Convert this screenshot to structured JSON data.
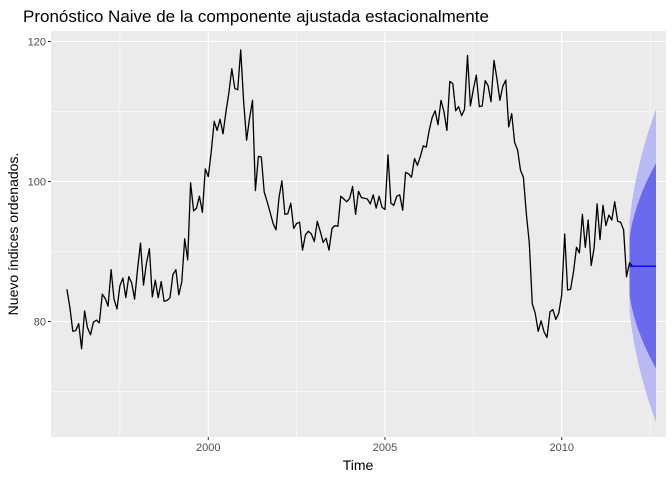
{
  "chart_data": {
    "type": "line",
    "title": "Pronóstico Naive de la componente ajustada estacionalmente",
    "xlabel": "Time",
    "ylabel": "Nuevo índices ordenados.",
    "xlim": [
      1995.55,
      2012.95
    ],
    "ylim": [
      63.5,
      121.5
    ],
    "x_ticks": [
      2000,
      2005,
      2010
    ],
    "x_tick_labels": [
      "2000",
      "2005",
      "2010"
    ],
    "y_ticks": [
      80,
      100,
      120
    ],
    "y_tick_labels": [
      "80",
      "100",
      "120"
    ],
    "grid": true,
    "legend": "none",
    "colors": {
      "panel": "#ebebeb",
      "grid_major": "#ffffff",
      "series": "#000000",
      "forecast": "#0000ff",
      "band80": "#6a6aee",
      "band95": "#b9b9f5"
    },
    "series": [
      {
        "start": 1996.0,
        "frequency": 12,
        "values": [
          84.6,
          82.0,
          78.6,
          78.7,
          79.7,
          76.1,
          81.5,
          79.1,
          78.1,
          79.9,
          80.2,
          79.8,
          83.9,
          83.3,
          82.2,
          87.4,
          83.2,
          81.8,
          85.1,
          86.2,
          83.4,
          86.4,
          85.5,
          83.2,
          87.5,
          91.2,
          85.2,
          88.3,
          90.4,
          83.5,
          85.9,
          83.4,
          85.7,
          82.9,
          83.0,
          83.4,
          86.7,
          87.4,
          83.8,
          85.7,
          91.8,
          88.8,
          99.8,
          95.8,
          96.2,
          97.9,
          95.6,
          101.8,
          100.7,
          104.2,
          108.6,
          107.3,
          108.9,
          106.8,
          110.0,
          112.7,
          116.1,
          113.3,
          113.1,
          118.8,
          111.5,
          105.9,
          109.0,
          111.6,
          98.7,
          103.6,
          103.5,
          98.5,
          97.1,
          95.6,
          94.0,
          93.1,
          97.7,
          100.1,
          95.3,
          95.4,
          96.9,
          93.3,
          94.0,
          94.2,
          90.2,
          92.4,
          92.9,
          92.5,
          91.4,
          94.3,
          92.9,
          91.3,
          91.9,
          90.2,
          93.3,
          93.7,
          93.6,
          97.9,
          97.5,
          97.1,
          97.6,
          99.3,
          95.3,
          98.6,
          97.7,
          97.6,
          97.5,
          96.8,
          98.1,
          96.2,
          97.9,
          96.3,
          96.0,
          103.8,
          96.9,
          96.6,
          97.9,
          98.1,
          95.9,
          101.3,
          101.1,
          100.6,
          103.3,
          102.3,
          103.6,
          105.1,
          104.9,
          107.3,
          109.1,
          110.1,
          108.1,
          111.6,
          110.0,
          107.3,
          114.3,
          114.0,
          110.1,
          110.7,
          109.4,
          110.3,
          118.0,
          110.8,
          113.2,
          115.2,
          110.7,
          110.8,
          114.4,
          113.7,
          111.4,
          117.3,
          114.7,
          111.6,
          113.6,
          114.5,
          107.8,
          109.7,
          105.6,
          104.5,
          101.6,
          100.6,
          95.3,
          91.2,
          82.5,
          81.2,
          78.6,
          80.1,
          78.5,
          77.7,
          81.4,
          81.7,
          80.3,
          81.2,
          83.8,
          92.5,
          84.5,
          84.6,
          87.1,
          90.6,
          89.8,
          95.3,
          90.6,
          94.5,
          88.0,
          90.5,
          96.8,
          91.7,
          96.6,
          93.7,
          95.2,
          94.5,
          97.1,
          94.3,
          94.2,
          93.1,
          86.4,
          88.4,
          87.9
        ]
      }
    ],
    "forecast": {
      "x_start": 2011.917,
      "x_end": 2012.667,
      "point": 87.9,
      "lo80_end": 73.3,
      "hi80_end": 102.6,
      "lo95_end": 65.6,
      "hi95_end": 110.3
    }
  }
}
